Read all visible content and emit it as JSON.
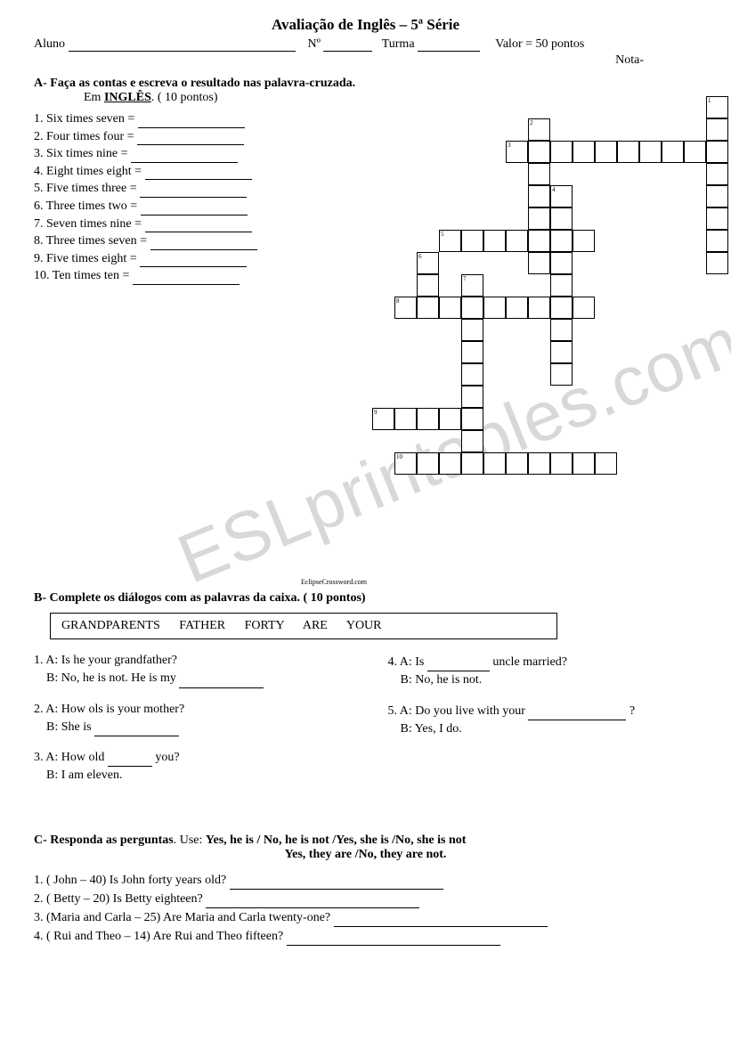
{
  "title": "Avaliação de Inglês – 5ª Série",
  "header": {
    "aluno": "Aluno",
    "no": "Nº",
    "turma": "Turma",
    "valor": "Valor = 50 pontos",
    "nota": "Nota-"
  },
  "sectionA": {
    "title": "A- Faça as contas e escreva o resultado nas palavra-cruzada.",
    "subtitle_prefix": "Em ",
    "subtitle_bold": "INGLÊS",
    "subtitle_suffix": ". ( 10 pontos)",
    "clues": [
      "1. Six times seven =",
      "2. Four times four =",
      "3. Six times nine =",
      "4. Eight times eight =",
      "5. Five times three =",
      "6. Three times two =",
      "7. Seven times nine =",
      "8. Three times seven =",
      "9. Five times eight =",
      "10. Ten times ten ="
    ]
  },
  "crossword": {
    "cell_size": 25,
    "words": [
      {
        "num": "1",
        "row": 0,
        "col": 17,
        "len": 8,
        "dir": "down"
      },
      {
        "num": "2",
        "row": 1,
        "col": 9,
        "len": 7,
        "dir": "down"
      },
      {
        "num": "3",
        "row": 2,
        "col": 8,
        "len": 9,
        "dir": "across"
      },
      {
        "num": "4",
        "row": 4,
        "col": 10,
        "len": 9,
        "dir": "down"
      },
      {
        "num": "5",
        "row": 6,
        "col": 5,
        "len": 7,
        "dir": "across"
      },
      {
        "num": "6",
        "row": 7,
        "col": 4,
        "len": 3,
        "dir": "down"
      },
      {
        "num": "7",
        "row": 8,
        "col": 6,
        "len": 9,
        "dir": "down"
      },
      {
        "num": "8",
        "row": 9,
        "col": 3,
        "len": 9,
        "dir": "across"
      },
      {
        "num": "9",
        "row": 14,
        "col": 2,
        "len": 5,
        "dir": "across"
      },
      {
        "num": "10",
        "row": 16,
        "col": 3,
        "len": 10,
        "dir": "across"
      }
    ]
  },
  "credit": "EclipseCrossword.com",
  "sectionB": {
    "title": "B- Complete os diálogos com as palavras da caixa. ( 10 pontos)",
    "box": "GRANDPARENTS    FATHER    FORTY    ARE    YOUR",
    "left": [
      {
        "a": "1. A: Is he your grandfather?",
        "b": "    B: No, he is not. He is my",
        "blank": 95
      },
      {
        "a": "2. A: How ols is your mother?",
        "b": "    B: She is",
        "blank": 95
      },
      {
        "a": "3. A: How old",
        "a_blank": 50,
        "a_tail": "you?",
        "b": "    B: I am eleven."
      }
    ],
    "right": [
      {
        "a": "4. A: Is",
        "a_blank": 70,
        "a_tail": "uncle married?",
        "b": "    B: No, he is not."
      },
      {
        "a": "5. A: Do you live with your",
        "a_blank": 110,
        "a_tail": "?",
        "b": "    B: Yes, I do."
      }
    ]
  },
  "sectionC": {
    "title": "C- Responda as perguntas",
    "title_tail": ". Use: ",
    "use_bold": "Yes, he is / No, he is not /Yes, she is /No, she is not",
    "use_bold2": "Yes, they are /No, they are not.",
    "questions": [
      "1. ( John – 40) Is John forty years old?",
      "2. ( Betty – 20) Is Betty eighteen?",
      "3. (Maria and Carla – 25) Are Maria and Carla twenty-one?",
      "4. ( Rui and Theo – 14) Are Rui and Theo fifteen?"
    ]
  },
  "watermark": "ESLprintables.com"
}
